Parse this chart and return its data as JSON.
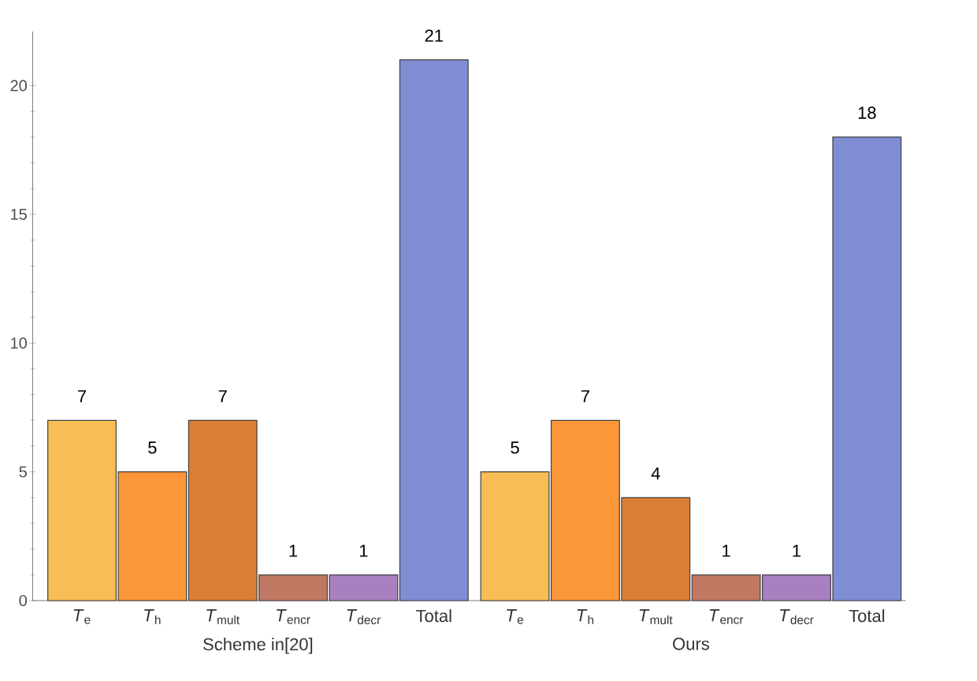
{
  "chart_data": {
    "type": "bar",
    "categories": [
      "*T*$_{e}$",
      "*T*$_{h}$",
      "*T*$_{mult}$",
      "*T*$_{encr}$",
      "*T*$_{decr}$",
      "Total",
      "*T*$_{e}$",
      "*T*$_{h}$",
      "*T*$_{mult}$",
      "*T*$_{encr}$",
      "*T*$_{decr}$",
      "Total"
    ],
    "values": [
      7,
      5,
      7,
      1,
      1,
      21,
      5,
      7,
      4,
      1,
      1,
      18
    ],
    "colors": [
      "#f9bd55",
      "#fb9639",
      "#db7d33",
      "#c07862",
      "#a87fbf",
      "#7f8dd3",
      "#f9bd55",
      "#fb9639",
      "#db7d33",
      "#c07862",
      "#a87fbf",
      "#7f8dd3"
    ],
    "annotations": [
      "Scheme in[20]",
      "Ours"
    ],
    "ylim": [
      0,
      22.1
    ],
    "yticks": [
      0,
      5,
      10,
      15,
      20
    ],
    "data_labels": true
  }
}
